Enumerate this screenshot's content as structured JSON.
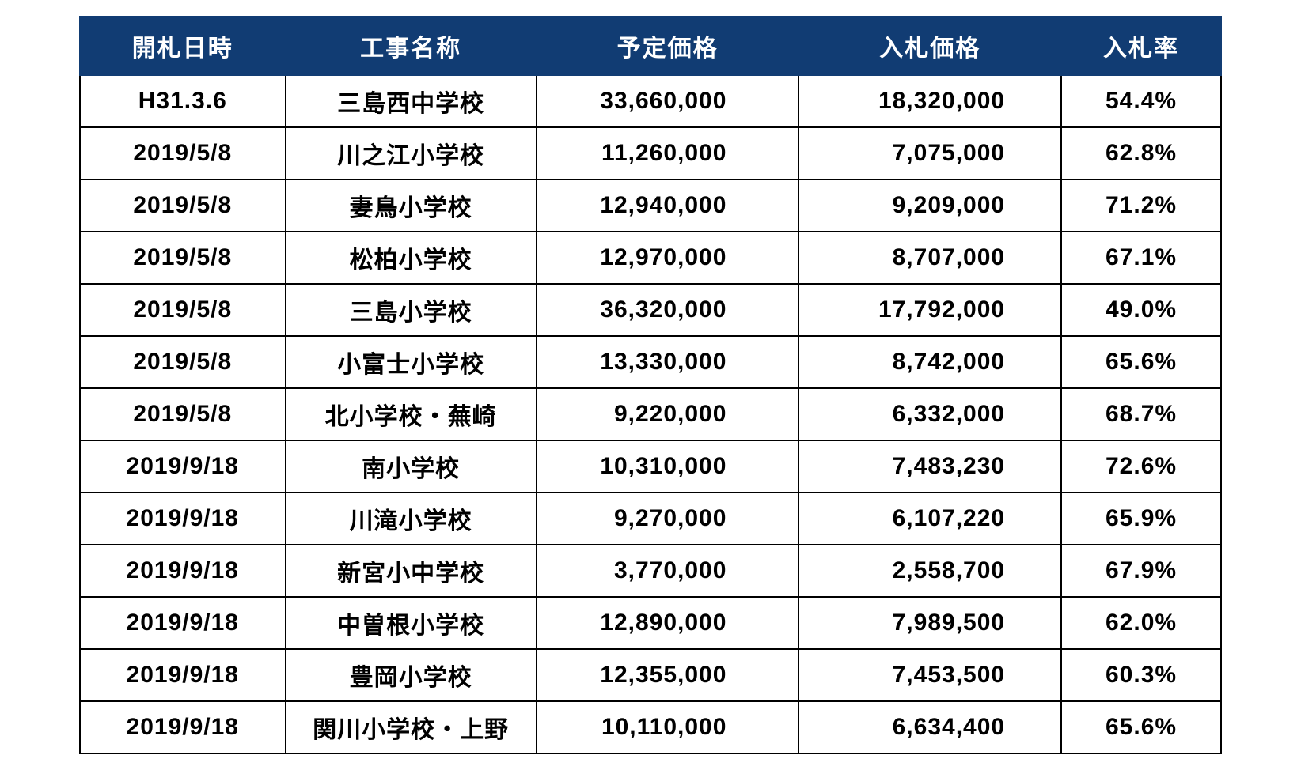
{
  "table": {
    "type": "table",
    "header_bg": "#113c73",
    "header_fg": "#ffffff",
    "border_color": "#000000",
    "font_size_header": 30,
    "font_size_cell": 30,
    "columns": [
      {
        "key": "date",
        "label": "開札日時",
        "align": "center",
        "width_pct": 18
      },
      {
        "key": "name",
        "label": "工事名称",
        "align": "center",
        "width_pct": 22
      },
      {
        "key": "est",
        "label": "予定価格",
        "align": "right",
        "width_pct": 23
      },
      {
        "key": "bid",
        "label": "入札価格",
        "align": "right",
        "width_pct": 23
      },
      {
        "key": "rate",
        "label": "入札率",
        "align": "center",
        "width_pct": 14
      }
    ],
    "rows": [
      {
        "date": "H31.3.6",
        "name": "三島西中学校",
        "est": "33,660,000",
        "bid": "18,320,000",
        "rate": "54.4%"
      },
      {
        "date": "2019/5/8",
        "name": "川之江小学校",
        "est": "11,260,000",
        "bid": "7,075,000",
        "rate": "62.8%"
      },
      {
        "date": "2019/5/8",
        "name": "妻鳥小学校",
        "est": "12,940,000",
        "bid": "9,209,000",
        "rate": "71.2%"
      },
      {
        "date": "2019/5/8",
        "name": "松柏小学校",
        "est": "12,970,000",
        "bid": "8,707,000",
        "rate": "67.1%"
      },
      {
        "date": "2019/5/8",
        "name": "三島小学校",
        "est": "36,320,000",
        "bid": "17,792,000",
        "rate": "49.0%"
      },
      {
        "date": "2019/5/8",
        "name": "小富士小学校",
        "est": "13,330,000",
        "bid": "8,742,000",
        "rate": "65.6%"
      },
      {
        "date": "2019/5/8",
        "name": "北小学校・蕪崎",
        "est": "9,220,000",
        "bid": "6,332,000",
        "rate": "68.7%"
      },
      {
        "date": "2019/9/18",
        "name": "南小学校",
        "est": "10,310,000",
        "bid": "7,483,230",
        "rate": "72.6%"
      },
      {
        "date": "2019/9/18",
        "name": "川滝小学校",
        "est": "9,270,000",
        "bid": "6,107,220",
        "rate": "65.9%"
      },
      {
        "date": "2019/9/18",
        "name": "新宮小中学校",
        "est": "3,770,000",
        "bid": "2,558,700",
        "rate": "67.9%"
      },
      {
        "date": "2019/9/18",
        "name": "中曽根小学校",
        "est": "12,890,000",
        "bid": "7,989,500",
        "rate": "62.0%"
      },
      {
        "date": "2019/9/18",
        "name": "豊岡小学校",
        "est": "12,355,000",
        "bid": "7,453,500",
        "rate": "60.3%"
      },
      {
        "date": "2019/9/18",
        "name": "関川小学校・上野",
        "est": "10,110,000",
        "bid": "6,634,400",
        "rate": "65.6%"
      }
    ]
  }
}
